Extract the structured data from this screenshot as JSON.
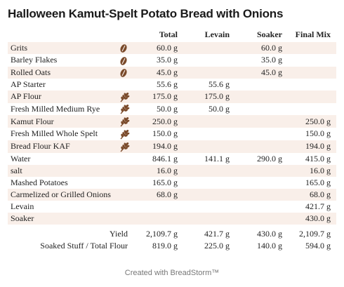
{
  "title": "Halloween Kamut-Spelt Potato Bread with Onions",
  "columns": [
    "Total",
    "Levain",
    "Soaker",
    "Final Mix"
  ],
  "rows": [
    {
      "name": "Grits",
      "icon": "grain-seed-icon",
      "total": "60.0 g",
      "levain": "",
      "soaker": "60.0 g",
      "final": ""
    },
    {
      "name": "Barley Flakes",
      "icon": "grain-seed-icon",
      "total": "35.0 g",
      "levain": "",
      "soaker": "35.0 g",
      "final": ""
    },
    {
      "name": "Rolled Oats",
      "icon": "grain-seed-icon",
      "total": "45.0 g",
      "levain": "",
      "soaker": "45.0 g",
      "final": ""
    },
    {
      "name": "AP Starter",
      "icon": "",
      "total": "55.6 g",
      "levain": "55.6 g",
      "soaker": "",
      "final": ""
    },
    {
      "name": "AP Flour",
      "icon": "wheat-icon",
      "total": "175.0 g",
      "levain": "175.0 g",
      "soaker": "",
      "final": ""
    },
    {
      "name": "Fresh Milled Medium Rye",
      "icon": "wheat-icon",
      "total": "50.0 g",
      "levain": "50.0 g",
      "soaker": "",
      "final": ""
    },
    {
      "name": "Kamut Flour",
      "icon": "wheat-icon",
      "total": "250.0 g",
      "levain": "",
      "soaker": "",
      "final": "250.0 g"
    },
    {
      "name": "Fresh Milled Whole Spelt",
      "icon": "wheat-icon",
      "total": "150.0 g",
      "levain": "",
      "soaker": "",
      "final": "150.0 g"
    },
    {
      "name": "Bread Flour KAF",
      "icon": "wheat-icon",
      "total": "194.0 g",
      "levain": "",
      "soaker": "",
      "final": "194.0 g"
    },
    {
      "name": "Water",
      "icon": "",
      "total": "846.1 g",
      "levain": "141.1 g",
      "soaker": "290.0 g",
      "final": "415.0 g"
    },
    {
      "name": "salt",
      "icon": "",
      "total": "16.0 g",
      "levain": "",
      "soaker": "",
      "final": "16.0 g"
    },
    {
      "name": "Mashed Potatoes",
      "icon": "",
      "total": "165.0 g",
      "levain": "",
      "soaker": "",
      "final": "165.0 g"
    },
    {
      "name": "Carmelized or Grilled Onions",
      "icon": "",
      "total": "68.0 g",
      "levain": "",
      "soaker": "",
      "final": "68.0 g"
    },
    {
      "name": "Levain",
      "icon": "",
      "total": "",
      "levain": "",
      "soaker": "",
      "final": "421.7 g"
    },
    {
      "name": "Soaker",
      "icon": "",
      "total": "",
      "levain": "",
      "soaker": "",
      "final": "430.0 g"
    }
  ],
  "summary": [
    {
      "label": "Yield",
      "total": "2,109.7 g",
      "levain": "421.7 g",
      "soaker": "430.0 g",
      "final": "2,109.7 g"
    },
    {
      "label": "Soaked Stuff / Total Flour",
      "total": "819.0 g",
      "levain": "225.0 g",
      "soaker": "140.0 g",
      "final": "594.0 g"
    }
  ],
  "footer": "Created with BreadStorm™",
  "colors": {
    "row_shade": "#f9efe9",
    "icon_brown": "#7a4a2a"
  }
}
